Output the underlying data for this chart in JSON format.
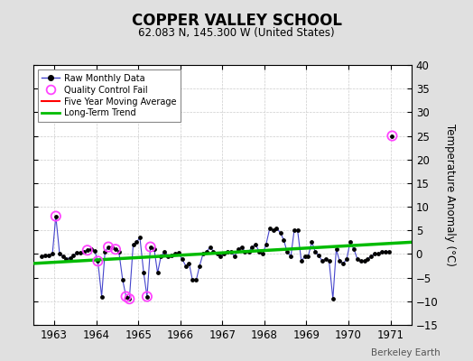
{
  "title": "COPPER VALLEY SCHOOL",
  "subtitle": "62.083 N, 145.300 W (United States)",
  "ylabel": "Temperature Anomaly (°C)",
  "watermark": "Berkeley Earth",
  "ylim": [
    -15,
    40
  ],
  "yticks": [
    -15,
    -10,
    -5,
    0,
    5,
    10,
    15,
    20,
    25,
    30,
    35,
    40
  ],
  "xlim": [
    1962.5,
    1971.5
  ],
  "xticks": [
    1963,
    1964,
    1965,
    1966,
    1967,
    1968,
    1969,
    1970,
    1971
  ],
  "raw_x": [
    1962.71,
    1962.79,
    1962.88,
    1962.96,
    1963.04,
    1963.13,
    1963.21,
    1963.29,
    1963.38,
    1963.46,
    1963.54,
    1963.63,
    1963.71,
    1963.79,
    1963.88,
    1963.96,
    1964.04,
    1964.13,
    1964.21,
    1964.29,
    1964.38,
    1964.46,
    1964.54,
    1964.63,
    1964.71,
    1964.79,
    1964.88,
    1964.96,
    1965.04,
    1965.13,
    1965.21,
    1965.29,
    1965.38,
    1965.46,
    1965.54,
    1965.63,
    1965.71,
    1965.79,
    1965.88,
    1965.96,
    1966.04,
    1966.13,
    1966.21,
    1966.29,
    1966.38,
    1966.46,
    1966.54,
    1966.63,
    1966.71,
    1966.79,
    1966.88,
    1966.96,
    1967.04,
    1967.13,
    1967.21,
    1967.29,
    1967.38,
    1967.46,
    1967.54,
    1967.63,
    1967.71,
    1967.79,
    1967.88,
    1967.96,
    1968.04,
    1968.13,
    1968.21,
    1968.29,
    1968.38,
    1968.46,
    1968.54,
    1968.63,
    1968.71,
    1968.79,
    1968.88,
    1968.96,
    1969.04,
    1969.13,
    1969.21,
    1969.29,
    1969.38,
    1969.46,
    1969.54,
    1969.63,
    1969.71,
    1969.79,
    1969.88,
    1969.96,
    1970.04,
    1970.13,
    1970.21,
    1970.29,
    1970.38,
    1970.46,
    1970.54,
    1970.63,
    1970.71,
    1970.79,
    1970.88,
    1970.96
  ],
  "raw_y": [
    -0.5,
    -0.3,
    -0.2,
    0.1,
    8.0,
    0.0,
    -0.5,
    -1.0,
    -0.8,
    -0.3,
    0.2,
    0.3,
    0.5,
    0.8,
    1.0,
    0.7,
    -1.5,
    -9.0,
    0.5,
    1.5,
    1.5,
    1.0,
    0.5,
    -5.5,
    -9.0,
    -9.5,
    2.0,
    2.5,
    3.5,
    -4.0,
    -9.0,
    1.5,
    1.0,
    -4.0,
    -0.5,
    0.5,
    -0.5,
    -0.3,
    0.0,
    0.2,
    -1.0,
    -2.5,
    -2.0,
    -5.5,
    -5.5,
    -2.5,
    0.0,
    0.5,
    1.5,
    0.5,
    0.0,
    -0.5,
    0.0,
    0.5,
    0.5,
    -0.5,
    1.0,
    1.5,
    0.5,
    0.5,
    1.5,
    2.0,
    0.5,
    0.0,
    2.0,
    5.5,
    5.0,
    5.5,
    4.5,
    3.0,
    0.5,
    -0.5,
    5.0,
    5.0,
    -1.5,
    -0.5,
    -0.5,
    2.5,
    0.5,
    -0.3,
    -1.5,
    -1.0,
    -1.5,
    -9.5,
    1.0,
    -1.5,
    -2.0,
    -1.0,
    2.5,
    1.0,
    -1.0,
    -1.5,
    -1.5,
    -1.0,
    -0.5,
    0.0,
    0.0,
    0.5,
    0.5,
    0.5
  ],
  "isolated_x": [
    1971.04
  ],
  "isolated_y": [
    25.0
  ],
  "qc_fail_x": [
    1963.04,
    1963.79,
    1964.04,
    1964.29,
    1964.46,
    1964.71,
    1964.79,
    1965.21,
    1965.29,
    1971.04
  ],
  "qc_fail_y": [
    8.0,
    0.8,
    -1.5,
    1.5,
    1.0,
    -9.0,
    -9.5,
    -9.0,
    1.5,
    25.0
  ],
  "trend_x": [
    1962.5,
    1971.5
  ],
  "trend_y": [
    -2.0,
    2.5
  ],
  "bg_color": "#e0e0e0",
  "plot_bg": "#ffffff",
  "raw_line_color": "#4444cc",
  "raw_dot_color": "#000000",
  "qc_color": "#ff44ff",
  "moving_avg_color": "#ff0000",
  "trend_color": "#00bb00",
  "grid_color": "#cccccc"
}
